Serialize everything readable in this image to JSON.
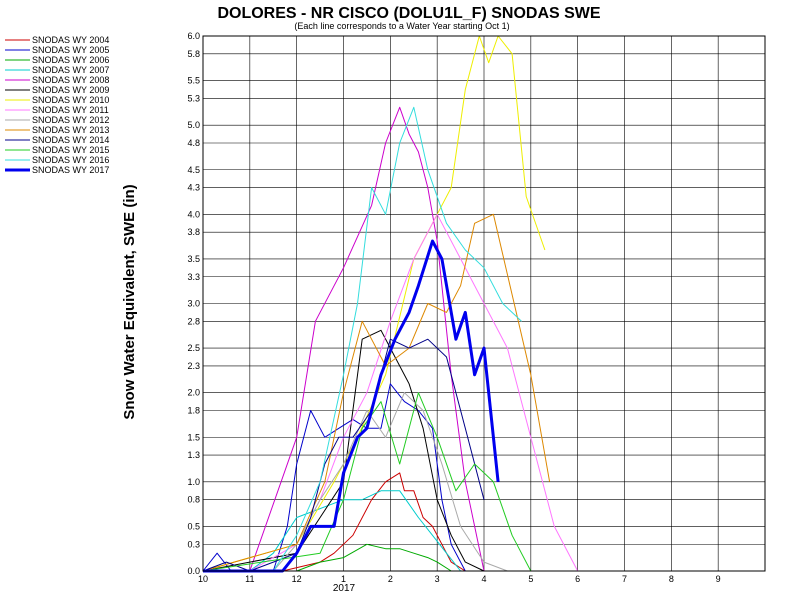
{
  "chart_data": {
    "type": "line",
    "title": "DOLORES - NR CISCO (DOLU1L_F) SNODAS SWE",
    "subtitle": "(Each line corresponds to a Water Year starting Oct 1)",
    "ylabel": "Snow Water Equivalent, SWE (in)",
    "xlabel": "",
    "x_ticks": [
      "10",
      "11",
      "12",
      "1",
      "2",
      "3",
      "4",
      "5",
      "6",
      "7",
      "8",
      "9"
    ],
    "x_year_label": "2017",
    "y_ticks": [
      "0.0",
      "0.3",
      "0.5",
      "0.8",
      "1.0",
      "1.3",
      "1.5",
      "1.8",
      "2.0",
      "2.3",
      "2.5",
      "2.8",
      "3.0",
      "3.3",
      "3.5",
      "3.8",
      "4.0",
      "4.3",
      "4.5",
      "4.8",
      "5.0",
      "5.3",
      "5.5",
      "5.8",
      "6.0"
    ],
    "xlim_months": [
      0,
      12
    ],
    "ylim": [
      0,
      6.0
    ],
    "grid": true,
    "legend_placement": "left",
    "series": [
      {
        "name": "SNODAS WY 2004",
        "color": "#cc0000",
        "width": 1,
        "x": [
          0,
          1.7,
          2.5,
          2.8,
          3.2,
          3.6,
          3.9,
          4.2,
          4.3,
          4.5,
          4.7,
          4.9,
          5.1,
          5.3,
          5.6,
          6.0
        ],
        "y": [
          0,
          0,
          0.1,
          0.2,
          0.4,
          0.8,
          1.0,
          1.1,
          0.9,
          0.9,
          0.6,
          0.5,
          0.3,
          0.1,
          0,
          0
        ]
      },
      {
        "name": "SNODAS WY 2005",
        "color": "#0000cc",
        "width": 1,
        "x": [
          0,
          0.3,
          0.6,
          1.5,
          1.8,
          2.0,
          2.3,
          2.6,
          2.9,
          3.2,
          3.5,
          3.8,
          4.0,
          4.3,
          4.6,
          4.9,
          5.1,
          5.3,
          5.6,
          6.0
        ],
        "y": [
          0,
          0.2,
          0,
          0,
          0.5,
          1.2,
          1.8,
          1.5,
          1.6,
          1.7,
          1.6,
          1.6,
          2.1,
          1.9,
          1.8,
          1.6,
          0.8,
          0.3,
          0,
          0
        ]
      },
      {
        "name": "SNODAS WY 2006",
        "color": "#00aa00",
        "width": 1,
        "x": [
          0,
          2.0,
          2.5,
          3.0,
          3.5,
          3.9,
          4.2,
          4.5,
          4.8,
          5.0,
          5.3,
          6.0
        ],
        "y": [
          0,
          0,
          0.1,
          0.15,
          0.3,
          0.25,
          0.25,
          0.2,
          0.15,
          0.1,
          0,
          0
        ]
      },
      {
        "name": "SNODAS WY 2007",
        "color": "#00cccc",
        "width": 1,
        "x": [
          0,
          1.0,
          1.5,
          2.0,
          2.5,
          3.0,
          3.4,
          3.8,
          4.2,
          4.6,
          4.9,
          5.2,
          5.5,
          6.0
        ],
        "y": [
          0,
          0,
          0.2,
          0.6,
          0.7,
          0.8,
          0.8,
          0.9,
          0.9,
          0.6,
          0.4,
          0.2,
          0,
          0
        ]
      },
      {
        "name": "SNODAS WY 2008",
        "color": "#cc00cc",
        "width": 1,
        "x": [
          0,
          1.0,
          2.0,
          2.4,
          3.0,
          3.6,
          3.9,
          4.2,
          4.4,
          4.6,
          4.8,
          5.0,
          5.3,
          5.6,
          6.0
        ],
        "y": [
          0,
          0,
          1.5,
          2.8,
          3.4,
          4.1,
          4.8,
          5.2,
          4.9,
          4.7,
          4.3,
          3.7,
          2.2,
          1.0,
          0
        ]
      },
      {
        "name": "SNODAS WY 2009",
        "color": "#000000",
        "width": 1,
        "x": [
          0,
          2.0,
          2.5,
          3.0,
          3.4,
          3.8,
          4.1,
          4.4,
          4.7,
          5.0,
          5.3,
          5.6,
          6.0
        ],
        "y": [
          0,
          0.2,
          0.6,
          1.0,
          2.6,
          2.7,
          2.4,
          2.1,
          1.6,
          0.8,
          0.4,
          0.1,
          0
        ]
      },
      {
        "name": "SNODAS WY 2010",
        "color": "#eeee00",
        "width": 1,
        "x": [
          0,
          2.0,
          2.8,
          3.3,
          3.9,
          4.5,
          5.0,
          5.3,
          5.6,
          5.9,
          6.1,
          6.3,
          6.6,
          6.9,
          7.3
        ],
        "y": [
          0,
          0.3,
          1.0,
          1.5,
          2.2,
          3.5,
          4.0,
          4.3,
          5.4,
          6.0,
          5.7,
          6.0,
          5.8,
          4.2,
          3.6
        ]
      },
      {
        "name": "SNODAS WY 2011",
        "color": "#ff77ff",
        "width": 1,
        "x": [
          0,
          1.0,
          2.0,
          2.5,
          3.0,
          3.5,
          4.0,
          4.5,
          5.0,
          5.5,
          6.0,
          6.5,
          7.0,
          7.5,
          8.0
        ],
        "y": [
          0,
          0,
          0.3,
          0.8,
          1.5,
          2.0,
          2.8,
          3.5,
          4.0,
          3.5,
          3.0,
          2.5,
          1.5,
          0.5,
          0
        ]
      },
      {
        "name": "SNODAS WY 2012",
        "color": "#aaaaaa",
        "width": 1,
        "x": [
          0,
          1.5,
          2.0,
          2.5,
          3.0,
          3.5,
          3.9,
          4.3,
          4.7,
          5.1,
          5.5,
          6.0,
          6.5
        ],
        "y": [
          0,
          0,
          0.3,
          0.8,
          1.2,
          1.8,
          1.5,
          2.0,
          1.8,
          1.2,
          0.5,
          0.1,
          0
        ]
      },
      {
        "name": "SNODAS WY 2013",
        "color": "#dd8800",
        "width": 1,
        "x": [
          0,
          2.0,
          2.6,
          3.0,
          3.4,
          3.9,
          4.4,
          4.8,
          5.2,
          5.5,
          5.8,
          6.2,
          6.6,
          7.0,
          7.4
        ],
        "y": [
          0,
          0.3,
          1.0,
          2.0,
          2.8,
          2.3,
          2.5,
          3.0,
          2.9,
          3.2,
          3.9,
          4.0,
          3.1,
          2.2,
          1.0
        ]
      },
      {
        "name": "SNODAS WY 2014",
        "color": "#000088",
        "width": 1,
        "x": [
          0,
          0.5,
          1.0,
          1.5,
          2.0,
          2.3,
          2.6,
          2.9,
          3.2,
          3.6,
          4.0,
          4.4,
          4.8,
          5.2,
          5.6,
          6.0
        ],
        "y": [
          0,
          0.1,
          0,
          0.1,
          0.2,
          0.6,
          1.2,
          1.5,
          1.5,
          1.8,
          2.6,
          2.5,
          2.6,
          2.4,
          1.6,
          0.8
        ]
      },
      {
        "name": "SNODAS WY 2015",
        "color": "#22cc22",
        "width": 1,
        "x": [
          0,
          2.5,
          3.0,
          3.4,
          3.8,
          4.2,
          4.6,
          5.0,
          5.4,
          5.8,
          6.2,
          6.6,
          7.0
        ],
        "y": [
          0,
          0.2,
          0.8,
          1.6,
          1.9,
          1.2,
          2.0,
          1.5,
          0.9,
          1.2,
          1.0,
          0.4,
          0
        ]
      },
      {
        "name": "SNODAS WY 2016",
        "color": "#33dddd",
        "width": 1,
        "x": [
          0,
          1.5,
          2.0,
          2.5,
          3.0,
          3.3,
          3.6,
          3.9,
          4.2,
          4.5,
          4.8,
          5.2,
          5.6,
          6.0,
          6.4,
          6.8
        ],
        "y": [
          0,
          0,
          0.4,
          1.0,
          2.2,
          3.0,
          4.3,
          4.0,
          4.8,
          5.2,
          4.5,
          3.9,
          3.6,
          3.4,
          3.0,
          2.8
        ]
      },
      {
        "name": "SNODAS WY 2017",
        "color": "#0000ee",
        "width": 3,
        "x": [
          0,
          1.7,
          2.0,
          2.3,
          2.5,
          2.8,
          3.0,
          3.3,
          3.5,
          3.8,
          4.1,
          4.4,
          4.6,
          4.9,
          5.1,
          5.4,
          5.6,
          5.8,
          6.0,
          6.3
        ],
        "y": [
          0,
          0,
          0.2,
          0.5,
          0.5,
          0.5,
          1.1,
          1.5,
          1.6,
          2.2,
          2.6,
          2.9,
          3.2,
          3.7,
          3.5,
          2.6,
          2.9,
          2.2,
          2.5,
          1.0
        ]
      }
    ]
  }
}
